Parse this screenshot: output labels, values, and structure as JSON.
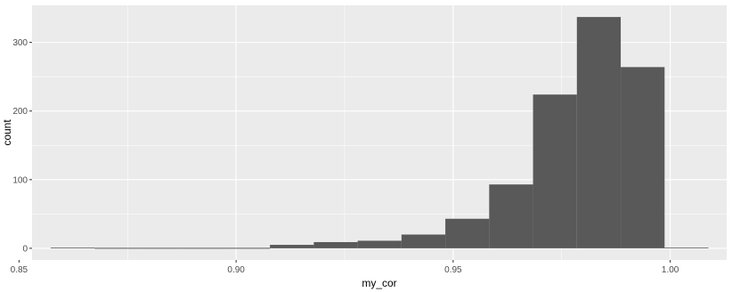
{
  "chart_data": {
    "type": "bar",
    "title": "",
    "xlabel": "my_cor",
    "ylabel": "count",
    "xlim": [
      0.853,
      1.013
    ],
    "ylim": [
      -17,
      354
    ],
    "x_ticks": [
      0.85,
      0.9,
      0.95,
      1.0
    ],
    "x_tick_labels": [
      "0.85",
      "0.90",
      "0.95",
      "1.00"
    ],
    "y_ticks": [
      0,
      100,
      200,
      300
    ],
    "y_tick_labels": [
      "0",
      "100",
      "200",
      "300"
    ],
    "bin_width": 0.0101,
    "bins": [
      {
        "x0": 0.8573,
        "x1": 0.8674,
        "count": 1
      },
      {
        "x0": 0.8674,
        "x1": 0.8775,
        "count": 0
      },
      {
        "x0": 0.8775,
        "x1": 0.8876,
        "count": 0
      },
      {
        "x0": 0.8876,
        "x1": 0.8977,
        "count": 0
      },
      {
        "x0": 0.8977,
        "x1": 0.9078,
        "count": 0
      },
      {
        "x0": 0.9078,
        "x1": 0.9179,
        "count": 5
      },
      {
        "x0": 0.9179,
        "x1": 0.928,
        "count": 9
      },
      {
        "x0": 0.928,
        "x1": 0.9381,
        "count": 11
      },
      {
        "x0": 0.9381,
        "x1": 0.9482,
        "count": 20
      },
      {
        "x0": 0.9482,
        "x1": 0.9583,
        "count": 43
      },
      {
        "x0": 0.9583,
        "x1": 0.9684,
        "count": 93
      },
      {
        "x0": 0.9684,
        "x1": 0.9785,
        "count": 224
      },
      {
        "x0": 0.9785,
        "x1": 0.9886,
        "count": 337
      },
      {
        "x0": 0.9886,
        "x1": 0.9987,
        "count": 264
      },
      {
        "x0": 0.9987,
        "x1": 1.0088,
        "count": 1
      }
    ],
    "grid": true,
    "legend": "none",
    "colors": {
      "panel_bg": "#ebebeb",
      "grid_major": "#ffffff",
      "bar_fill": "#595959",
      "tick_text": "#4d4d4d",
      "tick_mark": "#333333"
    }
  }
}
